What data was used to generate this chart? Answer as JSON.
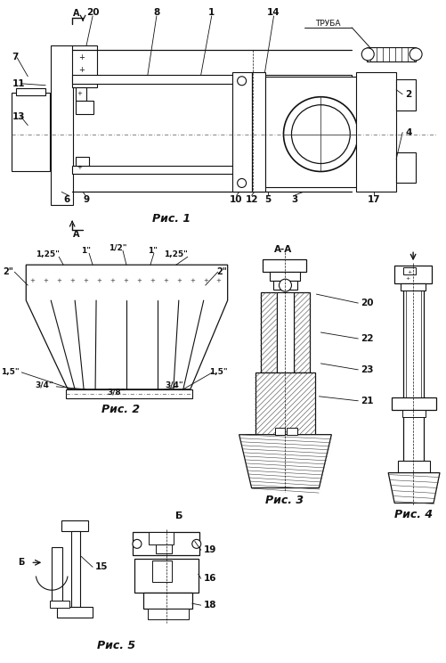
{
  "bg_color": "#ffffff",
  "lc": "#111111",
  "fig_width": 5.02,
  "fig_height": 7.44,
  "dpi": 100,
  "ris1": "Рис. 1",
  "ris2": "Рис. 2",
  "ris3": "Рис. 3",
  "ris4": "Рис. 4",
  "ris5": "Рис. 5",
  "truba": "ТРУБА",
  "sA": "А",
  "sAA": "А-А",
  "sB": "Б"
}
